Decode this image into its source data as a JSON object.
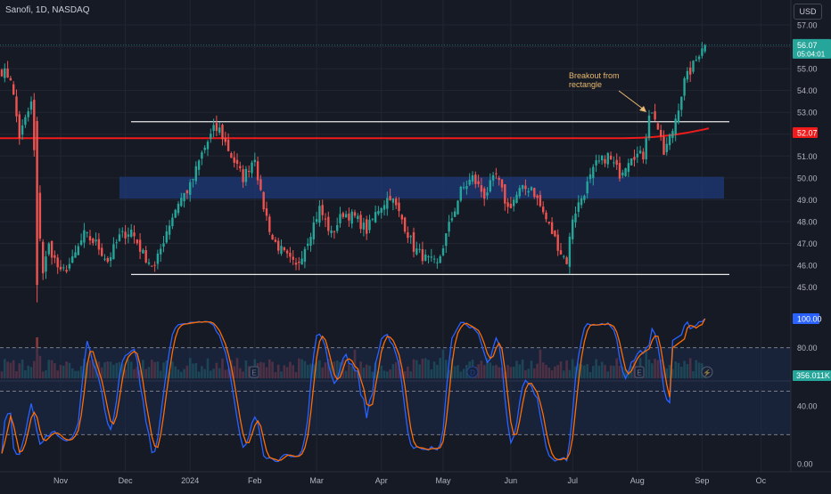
{
  "header": {
    "symbol_title": "Sanofi, 1D, NASDAQ",
    "currency": "USD"
  },
  "colors": {
    "background": "#161a25",
    "up": "#26a69a",
    "down": "#ef5350",
    "grid": "#232632",
    "axis_text": "#b2b5be",
    "zone_fill": "#1e3a7a",
    "red_line": "#f21b1b",
    "annotation": "#e8b96f",
    "stoch_k": "#2962ff",
    "stoch_d": "#ff6d00"
  },
  "chart_data": [
    {
      "type": "candlestick",
      "title": "Sanofi, 1D, NASDAQ",
      "ylim": [
        44.2,
        57.6
      ],
      "y_ticks": [
        45,
        46,
        47,
        48,
        49,
        50,
        51,
        52,
        53,
        54,
        55,
        56,
        57
      ],
      "x_ticks": [
        "Nov",
        "Dec",
        "2024",
        "Feb",
        "Mar",
        "Apr",
        "May",
        "Jun",
        "Jul",
        "Aug",
        "Sep",
        "Oc"
      ],
      "last_price": {
        "value": "56.07",
        "countdown": "05:04:01"
      },
      "price_marker": {
        "value": "52.07"
      },
      "annotation": "Breakout from\nrectangle",
      "horizontal_lines": [
        52.57,
        45.58
      ],
      "zone": [
        49.05,
        50.05
      ],
      "anchors": [
        [
          0,
          54.9
        ],
        [
          3,
          54.6
        ],
        [
          6,
          51.9
        ],
        [
          10,
          53.4
        ],
        [
          12,
          49.0
        ],
        [
          14,
          45.7
        ],
        [
          16,
          46.9
        ],
        [
          20,
          45.6
        ],
        [
          24,
          46.2
        ],
        [
          28,
          47.4
        ],
        [
          32,
          47.0
        ],
        [
          36,
          46.2
        ],
        [
          40,
          47.3
        ],
        [
          44,
          47.6
        ],
        [
          48,
          46.5
        ],
        [
          52,
          45.9
        ],
        [
          56,
          47.6
        ],
        [
          60,
          48.9
        ],
        [
          64,
          49.6
        ],
        [
          68,
          51.1
        ],
        [
          72,
          52.2
        ],
        [
          74,
          52.2
        ],
        [
          78,
          51.0
        ],
        [
          82,
          50.0
        ],
        [
          86,
          51.0
        ],
        [
          88,
          49.2
        ],
        [
          92,
          47.2
        ],
        [
          96,
          46.5
        ],
        [
          100,
          45.9
        ],
        [
          104,
          47.2
        ],
        [
          108,
          48.6
        ],
        [
          112,
          47.4
        ],
        [
          116,
          48.4
        ],
        [
          120,
          48.2
        ],
        [
          124,
          47.6
        ],
        [
          128,
          48.6
        ],
        [
          132,
          49.2
        ],
        [
          136,
          48.1
        ],
        [
          140,
          46.8
        ],
        [
          144,
          46.3
        ],
        [
          148,
          46.0
        ],
        [
          152,
          47.8
        ],
        [
          156,
          49.4
        ],
        [
          160,
          50.0
        ],
        [
          164,
          49.2
        ],
        [
          168,
          50.1
        ],
        [
          172,
          48.6
        ],
        [
          176,
          49.4
        ],
        [
          180,
          49.6
        ],
        [
          184,
          48.4
        ],
        [
          188,
          47.2
        ],
        [
          190,
          46.6
        ],
        [
          192,
          46.2
        ],
        [
          194,
          48.2
        ],
        [
          198,
          49.4
        ],
        [
          202,
          50.6
        ],
        [
          206,
          51.0
        ],
        [
          210,
          50.2
        ],
        [
          214,
          51.1
        ],
        [
          218,
          51.0
        ],
        [
          220,
          53.0
        ],
        [
          222,
          52.8
        ],
        [
          225,
          51.1
        ],
        [
          228,
          52.2
        ],
        [
          232,
          54.4
        ],
        [
          236,
          55.4
        ],
        [
          238,
          56.07
        ]
      ],
      "x_date_anchors": [
        [
          20,
          "Nov"
        ],
        [
          42,
          "Dec"
        ],
        [
          64,
          "2024"
        ],
        [
          86,
          "Feb"
        ],
        [
          107,
          "Mar"
        ],
        [
          129,
          "Apr"
        ],
        [
          150,
          "May"
        ],
        [
          173,
          "Jun"
        ],
        [
          194,
          "Jul"
        ],
        [
          216,
          "Aug"
        ],
        [
          238,
          "Sep"
        ],
        [
          258,
          "Oc"
        ]
      ]
    },
    {
      "type": "bar",
      "series": [
        {
          "name": "Volume",
          "values": []
        }
      ],
      "last_value": "356.011K",
      "event_markers": [
        "E",
        "D",
        "E",
        "⚡"
      ]
    },
    {
      "type": "line",
      "ylim": [
        -5,
        105
      ],
      "y_ticks": [
        "100.00",
        "80.00",
        "40.00",
        "0.00"
      ],
      "bands": [
        80,
        50,
        20
      ],
      "last_value": "100.00"
    }
  ]
}
